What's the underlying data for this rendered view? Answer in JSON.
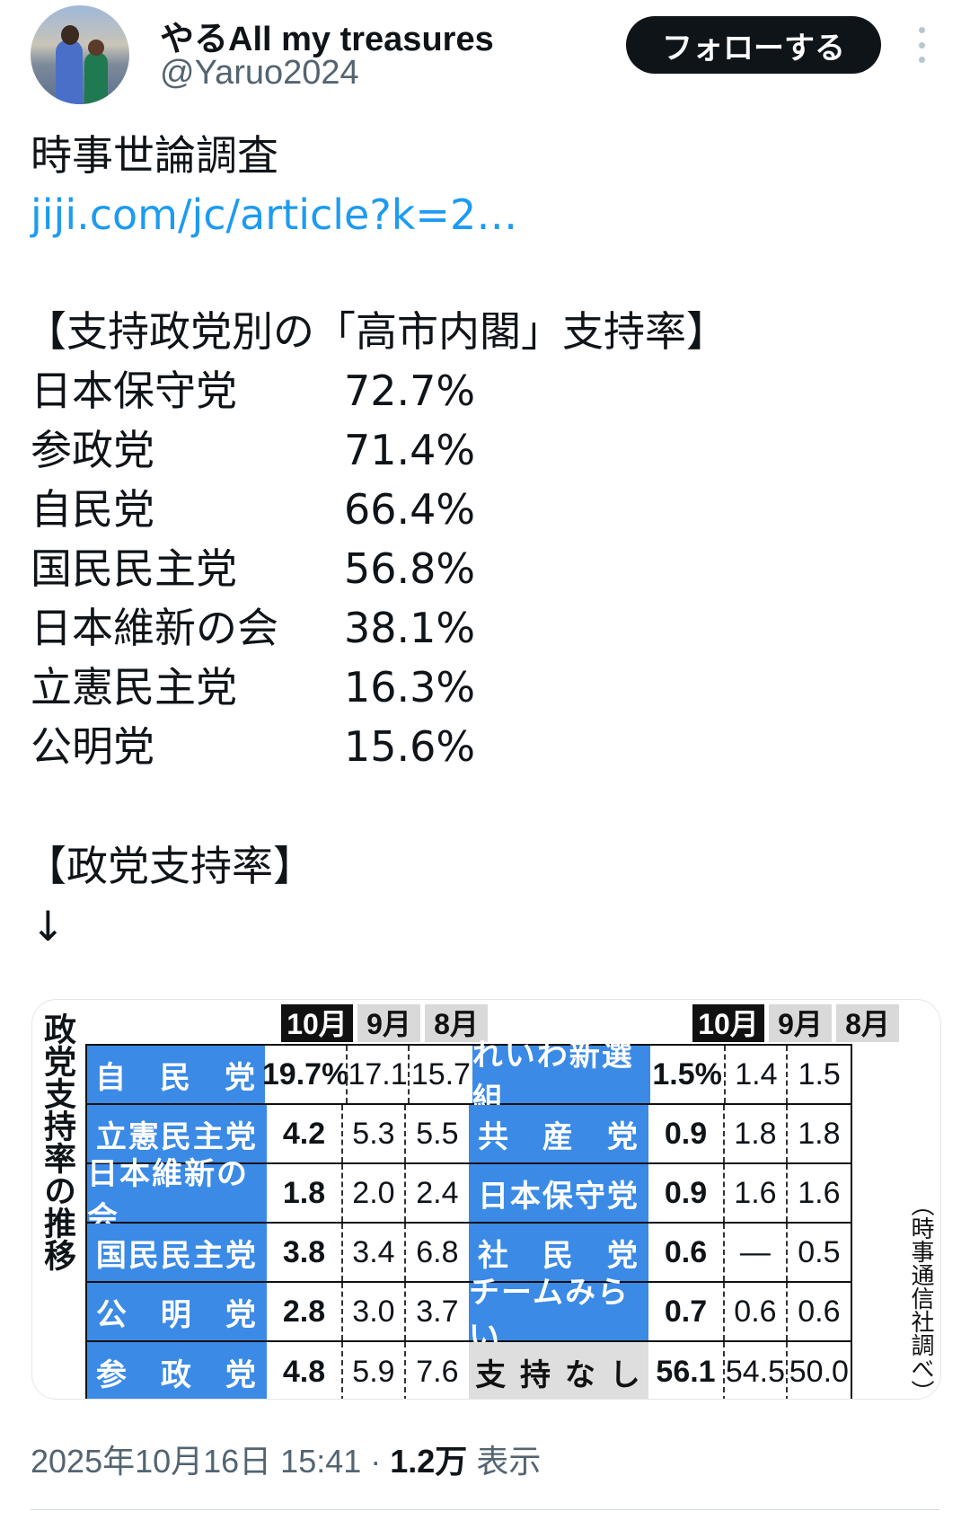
{
  "author": {
    "name": "やるAll my treasures",
    "handle": "@Yaruo2024",
    "follow_label": "フォローする"
  },
  "post": {
    "line1": "時事世論調査",
    "link": "jiji.com/jc/article?k=2…",
    "heading1": "【支持政党別の「高市内閣」支持率】",
    "rates": [
      {
        "party": "日本保守党",
        "value": "72.7%"
      },
      {
        "party": "参政党",
        "value": "71.4%"
      },
      {
        "party": "自民党",
        "value": "66.4%"
      },
      {
        "party": "国民民主党",
        "value": "56.8%"
      },
      {
        "party": "日本維新の会",
        "value": "38.1%"
      },
      {
        "party": "立憲民主党",
        "value": "16.3%"
      },
      {
        "party": "公明党",
        "value": "15.6%"
      }
    ],
    "heading2": "【政党支持率】",
    "arrow": "↓"
  },
  "image": {
    "title": "政党支持率の推移",
    "source": "（時事通信社調べ）",
    "months": [
      "10月",
      "9月",
      "8月"
    ],
    "left_rows": [
      {
        "party": "自　民　党",
        "v": [
          "19.7%",
          "17.1",
          "15.7"
        ]
      },
      {
        "party": "立憲民主党",
        "v": [
          "4.2",
          "5.3",
          "5.5"
        ]
      },
      {
        "party": "日本維新の会",
        "v": [
          "1.8",
          "2.0",
          "2.4"
        ]
      },
      {
        "party": "国民民主党",
        "v": [
          "3.8",
          "3.4",
          "6.8"
        ]
      },
      {
        "party": "公　明　党",
        "v": [
          "2.8",
          "3.0",
          "3.7"
        ]
      },
      {
        "party": "参　政　党",
        "v": [
          "4.8",
          "5.9",
          "7.6"
        ]
      }
    ],
    "right_rows": [
      {
        "party": "れいわ新選組",
        "v": [
          "1.5%",
          "1.4",
          "1.5"
        ]
      },
      {
        "party": "共　産　党",
        "v": [
          "0.9",
          "1.8",
          "1.8"
        ]
      },
      {
        "party": "日本保守党",
        "v": [
          "0.9",
          "1.6",
          "1.6"
        ]
      },
      {
        "party": "社　民　党",
        "v": [
          "0.6",
          "—",
          "0.5"
        ]
      },
      {
        "party": "チームみらい",
        "v": [
          "0.7",
          "0.6",
          "0.6"
        ]
      },
      {
        "party": "支 持 な し",
        "v": [
          "56.1",
          "54.5",
          "50.0"
        ]
      }
    ],
    "blue": "#3b8ae6"
  },
  "footer": {
    "datetime": "2025年10月16日 15:41",
    "sep": " · ",
    "views": "1.2万",
    "views_label": " 表示"
  }
}
